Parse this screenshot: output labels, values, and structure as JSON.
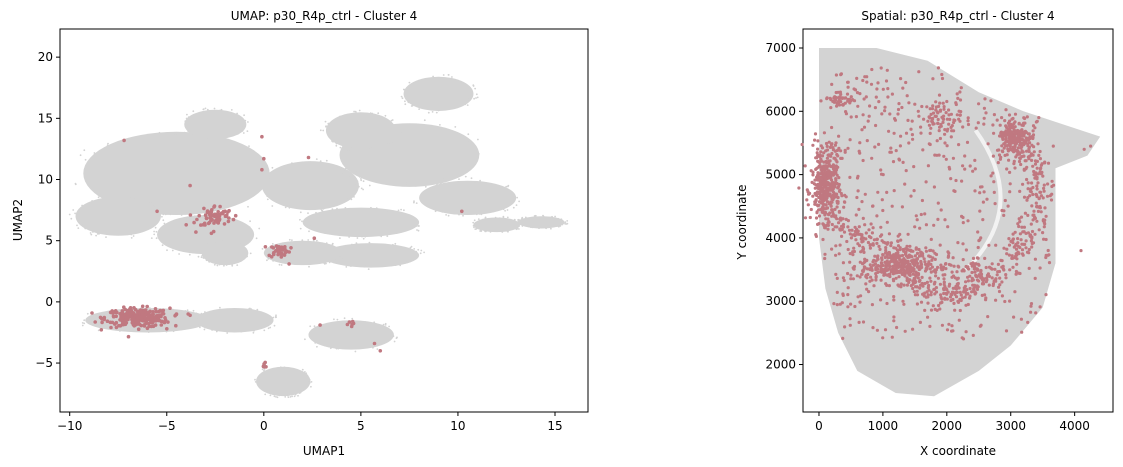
{
  "chart_data": [
    {
      "type": "scatter",
      "title": "UMAP: p30_R4p_ctrl - Cluster 4",
      "xlabel": "UMAP1",
      "ylabel": "UMAP2",
      "xlim": [
        -10.5,
        16.7
      ],
      "ylim": [
        -9.0,
        22.3
      ],
      "xticks": [
        -10,
        -5,
        0,
        5,
        10,
        15
      ],
      "yticks": [
        -5,
        0,
        5,
        10,
        15,
        20
      ],
      "background_color": "#d3d3d3",
      "highlight_color": "#c07880",
      "background_regions": [
        {
          "cx": -4.5,
          "cy": 10.5,
          "rx": 4.8,
          "ry": 3.4
        },
        {
          "cx": -7.5,
          "cy": 7.0,
          "rx": 2.2,
          "ry": 1.6
        },
        {
          "cx": -2.5,
          "cy": 14.5,
          "rx": 1.6,
          "ry": 1.2
        },
        {
          "cx": -3.0,
          "cy": 5.5,
          "rx": 2.5,
          "ry": 1.6
        },
        {
          "cx": 2.4,
          "cy": 9.5,
          "rx": 2.5,
          "ry": 2.0
        },
        {
          "cx": 5.0,
          "cy": 6.5,
          "rx": 3.0,
          "ry": 1.2
        },
        {
          "cx": 7.5,
          "cy": 12.0,
          "rx": 3.6,
          "ry": 2.6
        },
        {
          "cx": 5.0,
          "cy": 14.0,
          "rx": 1.8,
          "ry": 1.5
        },
        {
          "cx": 10.5,
          "cy": 8.5,
          "rx": 2.5,
          "ry": 1.4
        },
        {
          "cx": 5.5,
          "cy": 3.8,
          "rx": 2.5,
          "ry": 1.0
        },
        {
          "cx": 2.0,
          "cy": 4.0,
          "rx": 2.0,
          "ry": 1.0
        },
        {
          "cx": 9.0,
          "cy": 17.0,
          "rx": 1.8,
          "ry": 1.4
        },
        {
          "cx": 12.0,
          "cy": 6.3,
          "rx": 1.2,
          "ry": 0.6
        },
        {
          "cx": 14.3,
          "cy": 6.5,
          "rx": 1.2,
          "ry": 0.5
        },
        {
          "cx": -6.0,
          "cy": -1.5,
          "rx": 3.2,
          "ry": 1.0
        },
        {
          "cx": -1.5,
          "cy": -1.5,
          "rx": 2.0,
          "ry": 1.0
        },
        {
          "cx": 4.5,
          "cy": -2.7,
          "rx": 2.2,
          "ry": 1.2
        },
        {
          "cx": 1.0,
          "cy": -6.5,
          "rx": 1.4,
          "ry": 1.2
        },
        {
          "cx": -2.0,
          "cy": 4.0,
          "rx": 1.2,
          "ry": 1.0
        }
      ],
      "highlight_clusters": [
        {
          "cx": -6.5,
          "cy": -1.3,
          "rx": 1.5,
          "ry": 0.7,
          "n": 260
        },
        {
          "cx": -2.5,
          "cy": 7.0,
          "rx": 0.8,
          "ry": 0.8,
          "n": 70
        },
        {
          "cx": 0.8,
          "cy": 4.2,
          "rx": 0.5,
          "ry": 0.5,
          "n": 40
        },
        {
          "cx": 0.0,
          "cy": -5.2,
          "rx": 0.2,
          "ry": 0.2,
          "n": 8
        },
        {
          "cx": 4.4,
          "cy": -1.8,
          "rx": 0.2,
          "ry": 0.2,
          "n": 6
        }
      ],
      "highlight_points": [
        {
          "x": -7.2,
          "y": 13.2
        },
        {
          "x": -0.1,
          "y": 13.5
        },
        {
          "x": 0.0,
          "y": 11.7
        },
        {
          "x": 2.3,
          "y": 11.8
        },
        {
          "x": -0.1,
          "y": 10.8
        },
        {
          "x": -3.8,
          "y": 9.5
        },
        {
          "x": -5.5,
          "y": 7.4
        },
        {
          "x": -4.0,
          "y": 6.3
        },
        {
          "x": -3.5,
          "y": 5.7
        },
        {
          "x": -2.7,
          "y": 5.6
        },
        {
          "x": 2.6,
          "y": 5.2
        },
        {
          "x": 1.3,
          "y": 3.1
        },
        {
          "x": 10.2,
          "y": 7.4
        },
        {
          "x": 2.9,
          "y": -1.9
        },
        {
          "x": 5.7,
          "y": -3.4
        },
        {
          "x": 6.0,
          "y": -4.0
        },
        {
          "x": -4.5,
          "y": -1.0
        },
        {
          "x": -5.0,
          "y": -2.2
        },
        {
          "x": -3.8,
          "y": -1.1
        },
        {
          "x": -7.6,
          "y": -1.7
        }
      ]
    },
    {
      "type": "scatter",
      "title": "Spatial: p30_R4p_ctrl - Cluster 4",
      "xlabel": "X coordinate",
      "ylabel": "Y coordinate",
      "xlim": [
        -250,
        4600
      ],
      "ylim": [
        1250,
        7300
      ],
      "xticks": [
        0,
        1000,
        2000,
        3000,
        4000
      ],
      "yticks": [
        2000,
        3000,
        4000,
        5000,
        6000,
        7000
      ],
      "background_color": "#d3d3d3",
      "highlight_color": "#c07880",
      "tissue_outline": [
        [
          0,
          7000
        ],
        [
          900,
          7000
        ],
        [
          1700,
          6800
        ],
        [
          2500,
          6300
        ],
        [
          3200,
          6000
        ],
        [
          3800,
          5800
        ],
        [
          4400,
          5600
        ],
        [
          4200,
          5300
        ],
        [
          3700,
          5100
        ],
        [
          3700,
          3600
        ],
        [
          3500,
          2900
        ],
        [
          3000,
          2300
        ],
        [
          2500,
          1900
        ],
        [
          1800,
          1500
        ],
        [
          1200,
          1550
        ],
        [
          600,
          1900
        ],
        [
          300,
          2500
        ],
        [
          100,
          3200
        ],
        [
          0,
          4000
        ]
      ],
      "highlight_clusters": [
        {
          "cx": 100,
          "cy": 4750,
          "rx": 200,
          "ry": 450,
          "n": 320
        },
        {
          "cx": 150,
          "cy": 5300,
          "rx": 250,
          "ry": 250,
          "n": 60
        },
        {
          "cx": 350,
          "cy": 6200,
          "rx": 250,
          "ry": 120,
          "n": 40
        },
        {
          "cx": 1200,
          "cy": 3550,
          "rx": 500,
          "ry": 230,
          "n": 300
        },
        {
          "cx": 3050,
          "cy": 5600,
          "rx": 250,
          "ry": 250,
          "n": 180
        },
        {
          "cx": 1900,
          "cy": 5900,
          "rx": 300,
          "ry": 250,
          "n": 80
        }
      ],
      "highlight_arc": {
        "points": [
          [
            3050,
            5600
          ],
          [
            3350,
            5100
          ],
          [
            3400,
            4500
          ],
          [
            3150,
            3800
          ],
          [
            2600,
            3300
          ],
          [
            2000,
            3100
          ],
          [
            1400,
            3300
          ]
        ],
        "n": 360,
        "spread": 120
      },
      "highlight_band": {
        "points": [
          [
            100,
            4400
          ],
          [
            700,
            3950
          ],
          [
            1300,
            3800
          ],
          [
            2000,
            3550
          ],
          [
            2600,
            3450
          ]
        ],
        "n": 200,
        "spread": 100
      },
      "highlight_scatter_n": 520,
      "isolated_points": [
        [
          4150,
          5400
        ],
        [
          4250,
          5450
        ],
        [
          4100,
          3800
        ]
      ]
    }
  ]
}
